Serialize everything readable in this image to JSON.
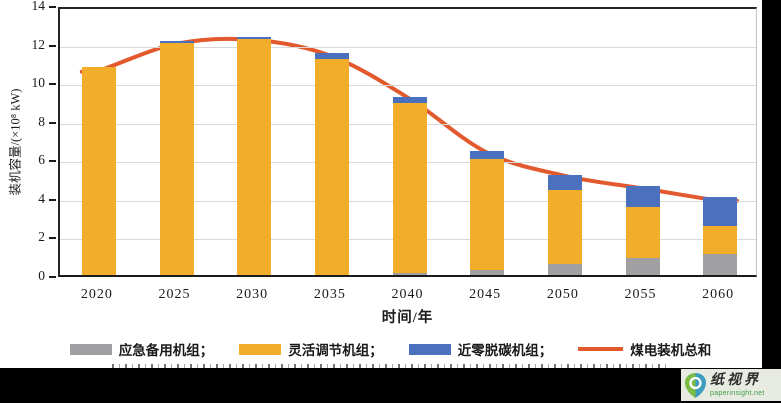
{
  "chart_data": {
    "type": "bar",
    "stacked": true,
    "categories": [
      "2020",
      "2025",
      "2030",
      "2035",
      "2040",
      "2045",
      "2050",
      "2055",
      "2060"
    ],
    "series": [
      {
        "name": "应急备用机组",
        "color": "#A0A0A2",
        "values": [
          0,
          0,
          0,
          0,
          0.1,
          0.25,
          0.55,
          0.9,
          1.1
        ]
      },
      {
        "name": "灵活调节机组",
        "color": "#F2AE2B",
        "values": [
          10.8,
          12.05,
          12.25,
          11.2,
          8.8,
          5.75,
          3.85,
          2.65,
          1.45
        ]
      },
      {
        "name": "近零脱碳机组",
        "color": "#4A70BE",
        "values": [
          0,
          0.1,
          0.1,
          0.3,
          0.35,
          0.45,
          0.8,
          1.05,
          1.5
        ]
      }
    ],
    "line_series": {
      "name": "煤电装机总和",
      "color": "#E2592E",
      "values": [
        10.8,
        12.2,
        12.4,
        11.55,
        9.35,
        6.55,
        5.35,
        4.7,
        4.05
      ]
    },
    "title": "",
    "xlabel": "时间/年",
    "ylabel": "装机容量/(×10⁸ kW)",
    "ylim": [
      0,
      14
    ],
    "yticks": [
      0,
      2,
      4,
      6,
      8,
      10,
      12,
      14
    ],
    "grid": true,
    "legend_position": "bottom"
  },
  "legend": {
    "items": [
      {
        "label": "应急备用机组；",
        "color": "#A0A0A2",
        "type": "box"
      },
      {
        "label": "灵活调节机组；",
        "color": "#F2AE2B",
        "type": "box"
      },
      {
        "label": "近零脱碳机组；",
        "color": "#4A70BE",
        "type": "box"
      },
      {
        "label": "煤电装机总和",
        "color": "#E2592E",
        "type": "line"
      }
    ]
  },
  "watermark": {
    "brand": "纸视界",
    "url": "paperinsight.net",
    "logo_green": "#7cbb45",
    "logo_teal": "#3d9dc0"
  }
}
